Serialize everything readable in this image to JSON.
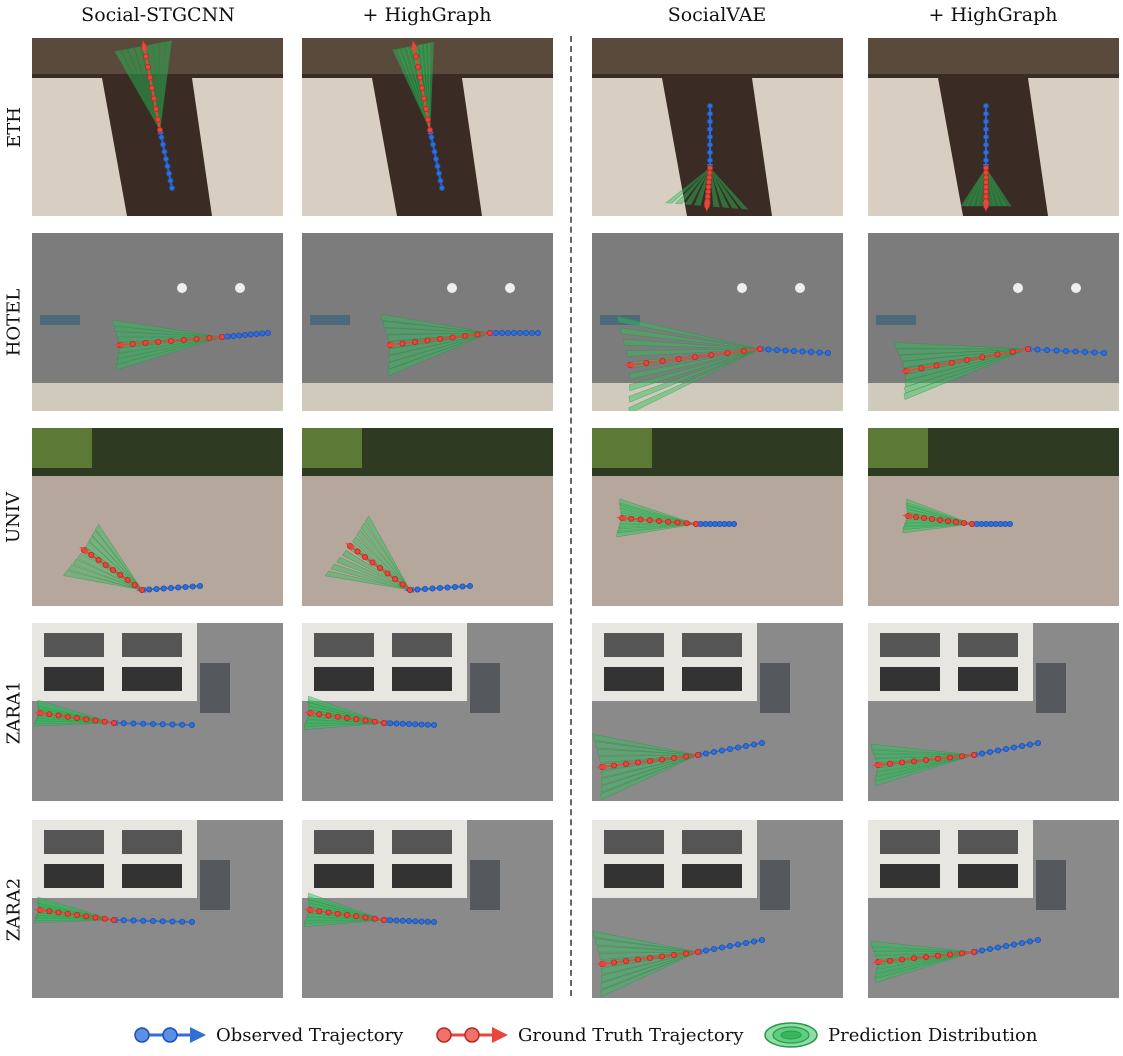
{
  "columns": [
    {
      "title": "Social-STGCNN"
    },
    {
      "title": "+ HighGraph"
    },
    {
      "title": "SocialVAE"
    },
    {
      "title": "+ HighGraph"
    }
  ],
  "rows": [
    {
      "label": "ETH",
      "scene": "eth"
    },
    {
      "label": "HOTEL",
      "scene": "hotel"
    },
    {
      "label": "UNIV",
      "scene": "univ"
    },
    {
      "label": "ZARA1",
      "scene": "zara"
    },
    {
      "label": "ZARA2",
      "scene": "zara"
    }
  ],
  "legend": [
    {
      "label": "Observed Trajectory",
      "icon": "observed-trajectory-icon"
    },
    {
      "label": "Ground Truth Trajectory",
      "icon": "ground-truth-trajectory-icon"
    },
    {
      "label": "Prediction Distribution",
      "icon": "prediction-distribution-icon"
    }
  ],
  "colors": {
    "observed": "#2f6fd6",
    "ground_truth": "#e8463c",
    "prediction": "#2fbf5a",
    "divider": "#666666"
  }
}
